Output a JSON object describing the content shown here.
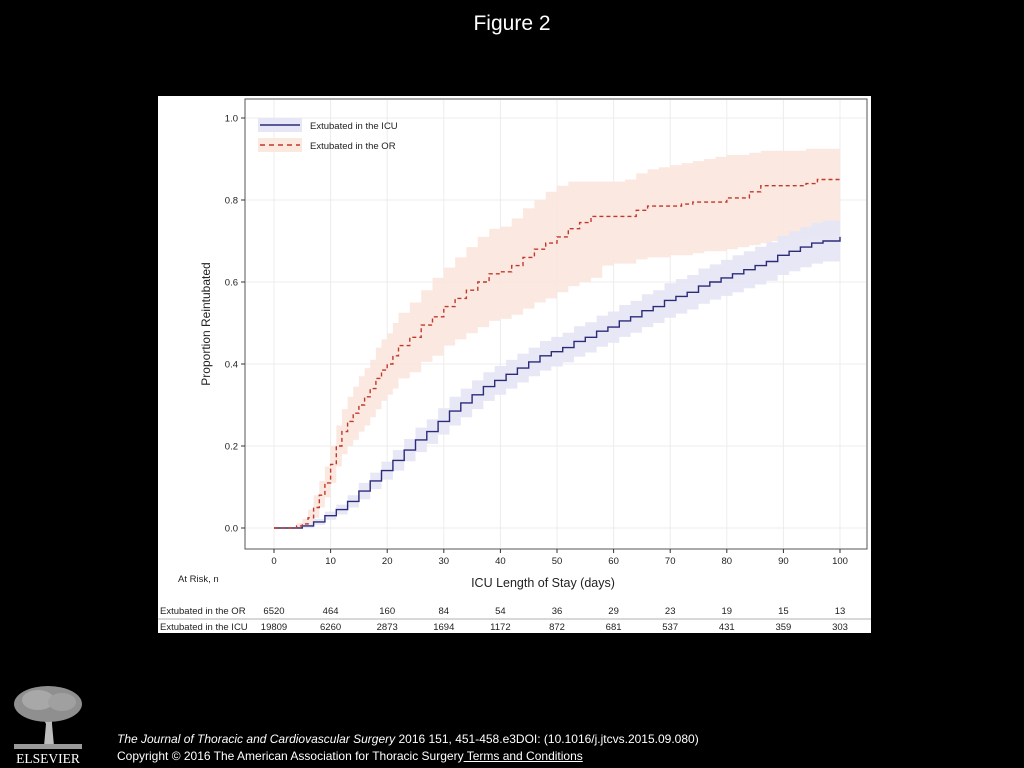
{
  "slide": {
    "title": "Figure 2"
  },
  "colors": {
    "icu_line": "#2b2b7a",
    "icu_band": "#e6e6f6",
    "or_line": "#c0392b",
    "or_band": "#fbe8df",
    "background": "#000000"
  },
  "chart_data": {
    "type": "line",
    "title": "",
    "xlabel": "ICU Length of Stay (days)",
    "ylabel": "Proportion Reintubated",
    "xlim": [
      0,
      100
    ],
    "ylim": [
      0,
      1.0
    ],
    "xticks": [
      0,
      10,
      20,
      30,
      40,
      50,
      60,
      70,
      80,
      90,
      100
    ],
    "yticks": [
      "0.0",
      "0.2",
      "0.4",
      "0.6",
      "0.8",
      "1.0"
    ],
    "grid": true,
    "legend_position": "top-left",
    "series": [
      {
        "name": "Extubated in the ICU",
        "style": "solid step",
        "x": [
          0,
          3,
          5,
          7,
          9,
          11,
          13,
          15,
          17,
          19,
          21,
          23,
          25,
          27,
          29,
          31,
          33,
          35,
          37,
          39,
          41,
          43,
          45,
          47,
          49,
          51,
          53,
          55,
          57,
          59,
          61,
          63,
          65,
          67,
          69,
          71,
          73,
          75,
          77,
          79,
          81,
          83,
          85,
          87,
          89,
          91,
          93,
          95,
          97,
          100
        ],
        "y": [
          0.0,
          0.0,
          0.005,
          0.015,
          0.03,
          0.045,
          0.065,
          0.09,
          0.115,
          0.14,
          0.165,
          0.19,
          0.215,
          0.235,
          0.26,
          0.285,
          0.305,
          0.325,
          0.345,
          0.36,
          0.375,
          0.39,
          0.405,
          0.42,
          0.43,
          0.44,
          0.455,
          0.465,
          0.48,
          0.49,
          0.505,
          0.515,
          0.53,
          0.54,
          0.555,
          0.565,
          0.575,
          0.59,
          0.6,
          0.61,
          0.62,
          0.63,
          0.64,
          0.65,
          0.665,
          0.675,
          0.685,
          0.695,
          0.7,
          0.71
        ],
        "lower": [
          0.0,
          0.0,
          0.0,
          0.008,
          0.02,
          0.033,
          0.05,
          0.07,
          0.095,
          0.118,
          0.14,
          0.163,
          0.185,
          0.205,
          0.228,
          0.25,
          0.27,
          0.29,
          0.31,
          0.325,
          0.34,
          0.355,
          0.37,
          0.384,
          0.394,
          0.404,
          0.418,
          0.428,
          0.442,
          0.452,
          0.466,
          0.476,
          0.49,
          0.5,
          0.513,
          0.523,
          0.533,
          0.547,
          0.557,
          0.566,
          0.575,
          0.585,
          0.594,
          0.603,
          0.617,
          0.626,
          0.636,
          0.645,
          0.65,
          0.66
        ],
        "upper": [
          0.0,
          0.0,
          0.01,
          0.022,
          0.04,
          0.057,
          0.08,
          0.11,
          0.135,
          0.162,
          0.19,
          0.217,
          0.245,
          0.265,
          0.292,
          0.32,
          0.34,
          0.36,
          0.38,
          0.395,
          0.41,
          0.425,
          0.44,
          0.456,
          0.466,
          0.476,
          0.492,
          0.502,
          0.518,
          0.528,
          0.544,
          0.554,
          0.57,
          0.58,
          0.597,
          0.607,
          0.617,
          0.633,
          0.643,
          0.654,
          0.665,
          0.675,
          0.686,
          0.697,
          0.713,
          0.724,
          0.734,
          0.745,
          0.75,
          0.76
        ]
      },
      {
        "name": "Extubated in the OR",
        "style": "dashed step",
        "x": [
          0,
          2,
          4,
          5,
          6,
          7,
          8,
          9,
          10,
          11,
          12,
          13,
          14,
          15,
          16,
          17,
          18,
          19,
          20,
          21,
          22,
          24,
          26,
          28,
          30,
          32,
          34,
          36,
          38,
          40,
          42,
          44,
          46,
          48,
          50,
          52,
          54,
          56,
          58,
          60,
          62,
          64,
          66,
          68,
          70,
          72,
          74,
          76,
          78,
          80,
          82,
          84,
          86,
          88,
          90,
          92,
          94,
          96,
          98,
          100
        ],
        "y": [
          0.0,
          0.0,
          0.005,
          0.01,
          0.025,
          0.05,
          0.08,
          0.11,
          0.155,
          0.2,
          0.235,
          0.26,
          0.28,
          0.3,
          0.32,
          0.34,
          0.365,
          0.385,
          0.4,
          0.42,
          0.445,
          0.465,
          0.495,
          0.515,
          0.54,
          0.56,
          0.58,
          0.6,
          0.62,
          0.625,
          0.64,
          0.66,
          0.68,
          0.695,
          0.71,
          0.73,
          0.745,
          0.76,
          0.76,
          0.76,
          0.76,
          0.775,
          0.785,
          0.785,
          0.785,
          0.79,
          0.795,
          0.795,
          0.795,
          0.805,
          0.805,
          0.82,
          0.835,
          0.835,
          0.835,
          0.835,
          0.84,
          0.85,
          0.85,
          0.855
        ],
        "lower": [
          0.0,
          0.0,
          0.0,
          0.0,
          0.008,
          0.025,
          0.05,
          0.075,
          0.11,
          0.15,
          0.18,
          0.2,
          0.215,
          0.235,
          0.25,
          0.27,
          0.29,
          0.31,
          0.325,
          0.34,
          0.365,
          0.38,
          0.405,
          0.42,
          0.445,
          0.46,
          0.475,
          0.49,
          0.505,
          0.51,
          0.52,
          0.535,
          0.55,
          0.56,
          0.575,
          0.59,
          0.6,
          0.61,
          0.64,
          0.645,
          0.645,
          0.655,
          0.66,
          0.66,
          0.665,
          0.665,
          0.67,
          0.675,
          0.675,
          0.68,
          0.685,
          0.69,
          0.695,
          0.7,
          0.705,
          0.705,
          0.71,
          0.71,
          0.715,
          0.72
        ],
        "upper": [
          0.0,
          0.0,
          0.012,
          0.022,
          0.045,
          0.08,
          0.115,
          0.15,
          0.2,
          0.25,
          0.29,
          0.32,
          0.345,
          0.37,
          0.39,
          0.41,
          0.44,
          0.46,
          0.475,
          0.5,
          0.525,
          0.55,
          0.58,
          0.61,
          0.635,
          0.66,
          0.685,
          0.71,
          0.73,
          0.735,
          0.755,
          0.78,
          0.8,
          0.82,
          0.835,
          0.845,
          0.845,
          0.845,
          0.845,
          0.845,
          0.85,
          0.865,
          0.875,
          0.88,
          0.885,
          0.89,
          0.895,
          0.9,
          0.905,
          0.91,
          0.91,
          0.915,
          0.92,
          0.92,
          0.92,
          0.92,
          0.925,
          0.925,
          0.925,
          0.925
        ]
      }
    ],
    "at_risk": {
      "header": "At Risk, n",
      "time_points": [
        0,
        10,
        20,
        30,
        40,
        50,
        60,
        70,
        80,
        90,
        100
      ],
      "rows": [
        {
          "label": "Extubated in the OR",
          "values": [
            "6520",
            "464",
            "160",
            "84",
            "54",
            "36",
            "29",
            "23",
            "19",
            "15",
            "13"
          ]
        },
        {
          "label": "Extubated in the ICU",
          "values": [
            "19809",
            "6260",
            "2873",
            "1694",
            "1172",
            "872",
            "681",
            "537",
            "431",
            "359",
            "303"
          ]
        }
      ]
    }
  },
  "footer": {
    "logo_text": "ELSEVIER",
    "citation_journal": "The Journal of Thoracic and Cardiovascular Surgery",
    "citation_rest": " 2016 151, 451-458.e3DOI: (10.1016/j.jtcvs.2015.09.080)",
    "copyright": "Copyright © 2016 The American Association for Thoracic Surgery",
    "terms_link": " Terms and Conditions"
  }
}
